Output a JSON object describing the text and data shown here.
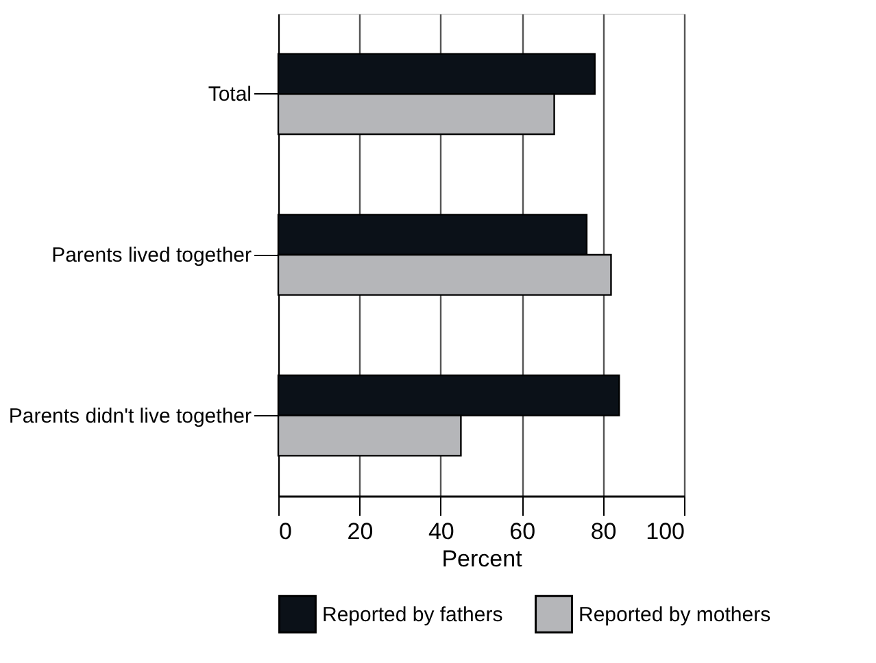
{
  "chart_data": {
    "type": "bar",
    "orientation": "horizontal",
    "xlabel": "Percent",
    "categories": [
      "Total",
      "Parents lived together",
      "Parents didn't live together"
    ],
    "series": [
      {
        "name": "Reported by fathers",
        "color": "#0b1118",
        "values": [
          78,
          76,
          84
        ]
      },
      {
        "name": "Reported by mothers",
        "color": "#b5b6b9",
        "values": [
          68,
          82,
          45
        ]
      }
    ],
    "xlim": [
      0,
      100
    ],
    "xticks": [
      0,
      20,
      40,
      60,
      80,
      100
    ],
    "grid": "x",
    "legend": "bottom"
  }
}
